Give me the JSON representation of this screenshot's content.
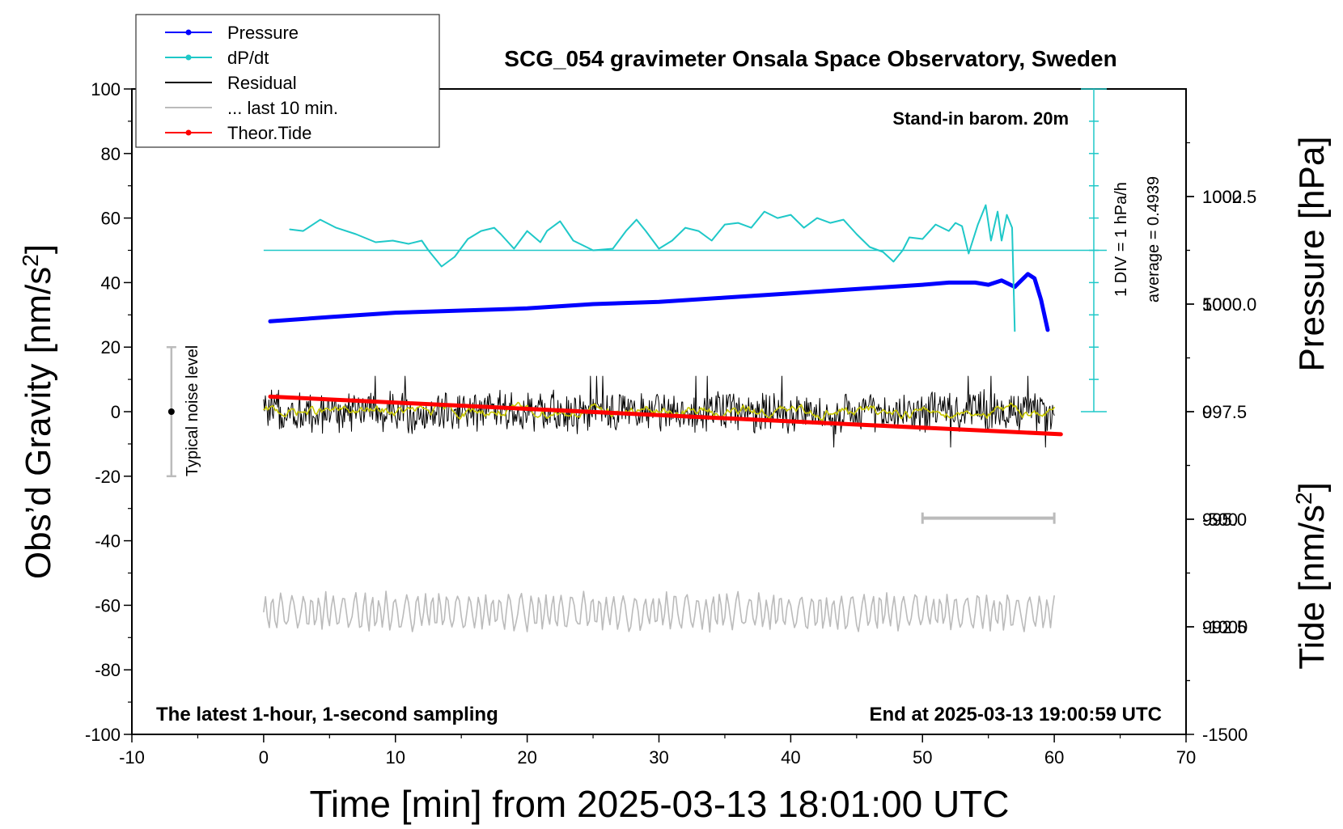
{
  "chart_data": {
    "type": "line",
    "title": "SCG_054 gravimeter Onsala Space Observatory, Sweden",
    "xlabel": "Time [min] from 2025-03-13 18:01:00 UTC",
    "ylabel_left": "Obs’d Gravity [nm/s²]",
    "ylabel_left_base": "Obs’d Gravity [nm/s",
    "ylabel_left_sup": "2",
    "ylabel_left_tail": "]",
    "ylabel_right_top": "Pressure [hPa]",
    "ylabel_right_bottom": "Tide [nm/s²]",
    "ylabel_right_bottom_base": "Tide [nm/s",
    "ylabel_right_bottom_sup": "2",
    "ylabel_right_bottom_tail": "]",
    "xlim": [
      -10,
      70
    ],
    "ylim_left": [
      -100,
      100
    ],
    "ylim_pressure": [
      990,
      1005
    ],
    "ylim_tide": [
      -1500,
      1500
    ],
    "x_ticks": [
      "-10",
      "0",
      "10",
      "20",
      "30",
      "40",
      "50",
      "60",
      "70"
    ],
    "x_tick_values": [
      -10,
      0,
      10,
      20,
      30,
      40,
      50,
      60,
      70
    ],
    "y_left_ticks": [
      "100",
      "80",
      "60",
      "40",
      "20",
      "0",
      "-20",
      "-40",
      "-60",
      "-80",
      "-100"
    ],
    "y_left_tick_values": [
      100,
      80,
      60,
      40,
      20,
      0,
      -20,
      -40,
      -60,
      -80,
      -100
    ],
    "y_pressure_ticks": [
      "1002.5",
      "1000.0",
      "997.5",
      "995.0",
      "992.5"
    ],
    "y_pressure_tick_values": [
      1002.5,
      1000.0,
      997.5,
      995.0,
      992.5
    ],
    "y_tide_ticks": [
      "1000",
      "500",
      "0",
      "-500",
      "-1000",
      "-1500"
    ],
    "y_tide_tick_values": [
      1000,
      500,
      0,
      -500,
      -1000,
      -1500
    ],
    "legend_position": "top-left",
    "legend": [
      {
        "label": "Pressure",
        "color": "#0000ff",
        "marker": true
      },
      {
        "label": "dP/dt",
        "color": "#1fc8c8",
        "marker": true
      },
      {
        "label": "Residual",
        "color": "#000000",
        "marker": false
      },
      {
        "label": "... last 10 min.",
        "color": "#bbbbbb",
        "marker": false
      },
      {
        "label": "Theor.Tide",
        "color": "#ff0000",
        "marker": true
      }
    ],
    "annotations": {
      "stand_in": "Stand-in barom. 20m",
      "div_label": "1 DIV = 1 hPa/h",
      "average_label": "average = 0.4939",
      "noise_label": "Typical noise level",
      "bottom_left": "The latest 1-hour, 1-second sampling",
      "bottom_right": "End at 2025-03-13 19:00:59 UTC"
    },
    "noise_bar": {
      "x": -7,
      "y_min": -20,
      "y_max": 20,
      "center": 0
    },
    "ten_min_bar": {
      "x_start": 50,
      "x_end": 60,
      "y_gravity": -33
    },
    "dpdt_scale_bar": {
      "x": 63,
      "y_top": 100,
      "y_bottom": 0,
      "baseline_y": 50,
      "divisions": 10
    },
    "series": [
      {
        "name": "Pressure",
        "color": "#0000ff",
        "axis": "pressure",
        "x": [
          0.5,
          5,
          10,
          15,
          20,
          25,
          30,
          35,
          40,
          45,
          50,
          52,
          54,
          55,
          56,
          57,
          57.5,
          58,
          58.5,
          59,
          59.5
        ],
        "values": [
          999.6,
          999.7,
          999.8,
          999.85,
          999.9,
          1000.0,
          1000.05,
          1000.15,
          1000.25,
          1000.35,
          1000.45,
          1000.5,
          1000.5,
          1000.45,
          1000.55,
          1000.4,
          1000.55,
          1000.7,
          1000.6,
          1000.1,
          999.4
        ]
      },
      {
        "name": "dP/dt",
        "color": "#1fc8c8",
        "axis": "gravity",
        "x": [
          2,
          3,
          4.3,
          5.5,
          7,
          8.5,
          9.8,
          11,
          12,
          12.5,
          13.5,
          14.5,
          15.5,
          16.5,
          17.5,
          18,
          19,
          20,
          21,
          21.5,
          22.5,
          23.5,
          25,
          26.5,
          27.5,
          28.3,
          29,
          30,
          31,
          32,
          33,
          34,
          35,
          36,
          37,
          38,
          39,
          40,
          41,
          42,
          43,
          44,
          45,
          46,
          47,
          47.8,
          48.5,
          49,
          50,
          51,
          52,
          52.5,
          53,
          53.5,
          54.2,
          54.8,
          55.2,
          55.7,
          56,
          56.4,
          56.8,
          57
        ],
        "values": [
          56.5,
          56,
          59.5,
          57,
          55,
          52.5,
          53,
          52,
          53,
          50,
          45,
          48,
          53.5,
          56,
          57,
          55,
          50.5,
          56,
          52.5,
          56,
          59,
          53,
          50,
          50.5,
          56,
          59.5,
          56,
          50.5,
          53,
          57,
          56,
          53,
          58,
          58.5,
          57,
          62,
          60,
          61,
          57,
          60,
          58.5,
          59.5,
          55,
          51,
          49.5,
          46.5,
          50,
          54,
          53.5,
          58,
          56,
          58.5,
          57.5,
          49,
          58,
          64,
          53,
          62,
          53,
          61,
          57,
          25
        ]
      },
      {
        "name": "Residual",
        "color": "#000000",
        "axis": "gravity",
        "x_start": 0,
        "x_end": 60,
        "center": 0,
        "amplitude": 7,
        "max_excursion": [
          -11,
          11
        ]
      },
      {
        "name": "",
        "color": "#c8c800",
        "axis": "gravity",
        "x_start": 0,
        "x_end": 60,
        "center": 0,
        "amplitude": 2.5
      },
      {
        "name": "... last 10 min.",
        "color": "#bbbbbb",
        "axis": "gravity",
        "x_start": 0,
        "x_end": 60,
        "center": -62,
        "amplitude": 6.5
      },
      {
        "name": "Theor.Tide",
        "color": "#ff0000",
        "axis": "tide",
        "x": [
          0.5,
          60.5
        ],
        "values": [
          70,
          -105
        ]
      }
    ]
  }
}
